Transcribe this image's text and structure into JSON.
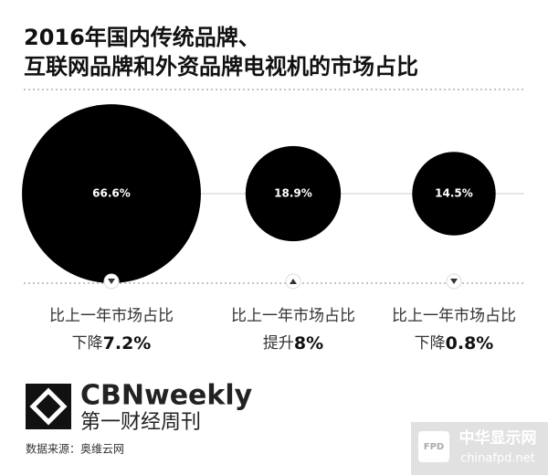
{
  "chart_data": {
    "type": "bubble",
    "title": [
      "2016年国内传统品牌、",
      "互联网品牌和外资品牌电视机的市场占比"
    ],
    "values": [
      66.6,
      18.9,
      14.5
    ],
    "value_labels": [
      "66.6%",
      "18.9%",
      "14.5%"
    ],
    "color": "#000000",
    "change_caption": [
      "比上一年市场占比",
      "比上一年市场占比",
      "比上一年市场占比"
    ],
    "change_direction": [
      "下降",
      "提升",
      "下降"
    ],
    "change_labels": [
      "7.2%",
      "8%",
      "0.8%"
    ]
  },
  "brand": {
    "name": "CBNweekly",
    "subtitle": "第一财经周刊"
  },
  "source": "数据来源：奥维云网",
  "watermark": {
    "badge": "FPD",
    "name": "中华显示网",
    "url": "chinafpd.net"
  }
}
